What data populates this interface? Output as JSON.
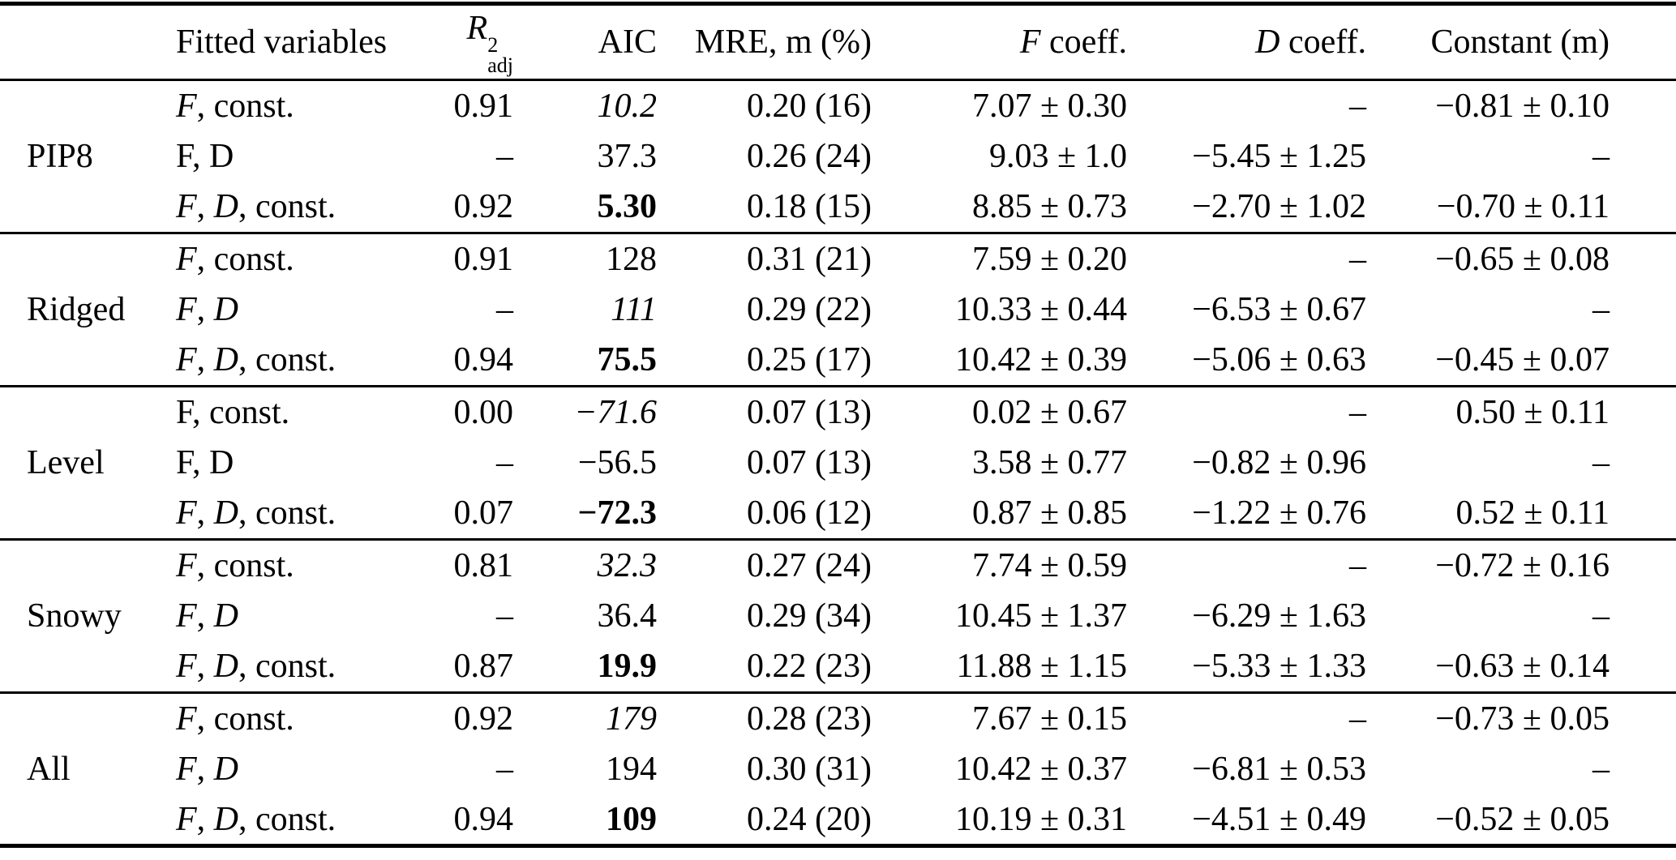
{
  "colors": {
    "text": "#000000",
    "background": "#ffffff",
    "rule": "#000000"
  },
  "table": {
    "header": {
      "group": "",
      "fitted": "Fitted variables",
      "r2_base": "R",
      "r2_sup": "2",
      "r2_sub": "adj",
      "aic": "AIC",
      "mre": "MRE, m (%)",
      "f_var": "F",
      "f_rest": " coeff.",
      "d_var": "D",
      "d_rest": " coeff.",
      "constant": "Constant (m)"
    },
    "groups": [
      {
        "name": "PIP8",
        "rows": [
          {
            "fitted": {
              "text": "F, const.",
              "italic_vars": true
            },
            "r2adj": "0.91",
            "aic": {
              "text": "10.2",
              "style": "italic"
            },
            "mre": "0.20 (16)",
            "f_coeff": "7.07 ± 0.30",
            "d_coeff": "–",
            "constant": "−0.81 ± 0.10"
          },
          {
            "fitted": {
              "text": "F, D",
              "italic_vars": false
            },
            "r2adj": "–",
            "aic": {
              "text": "37.3",
              "style": "normal"
            },
            "mre": "0.26 (24)",
            "f_coeff": "9.03 ± 1.0",
            "d_coeff": "−5.45 ± 1.25",
            "constant": "–"
          },
          {
            "fitted": {
              "text": "F, D, const.",
              "italic_vars": true
            },
            "r2adj": "0.92",
            "aic": {
              "text": "5.30",
              "style": "bold"
            },
            "mre": "0.18 (15)",
            "f_coeff": "8.85 ± 0.73",
            "d_coeff": "−2.70 ± 1.02",
            "constant": "−0.70 ± 0.11"
          }
        ]
      },
      {
        "name": "Ridged",
        "rows": [
          {
            "fitted": {
              "text": "F, const.",
              "italic_vars": true
            },
            "r2adj": "0.91",
            "aic": {
              "text": "128",
              "style": "normal"
            },
            "mre": "0.31 (21)",
            "f_coeff": "7.59 ± 0.20",
            "d_coeff": "–",
            "constant": "−0.65 ± 0.08"
          },
          {
            "fitted": {
              "text": "F, D",
              "italic_vars": true
            },
            "r2adj": "–",
            "aic": {
              "text": "111",
              "style": "italic"
            },
            "mre": "0.29 (22)",
            "f_coeff": "10.33 ± 0.44",
            "d_coeff": "−6.53 ± 0.67",
            "constant": "–"
          },
          {
            "fitted": {
              "text": "F, D, const.",
              "italic_vars": true
            },
            "r2adj": "0.94",
            "aic": {
              "text": "75.5",
              "style": "bold"
            },
            "mre": "0.25 (17)",
            "f_coeff": "10.42 ± 0.39",
            "d_coeff": "−5.06 ± 0.63",
            "constant": "−0.45 ± 0.07"
          }
        ]
      },
      {
        "name": "Level",
        "rows": [
          {
            "fitted": {
              "text": "F, const.",
              "italic_vars": false
            },
            "r2adj": "0.00",
            "aic": {
              "text": "−71.6",
              "style": "italic"
            },
            "mre": "0.07 (13)",
            "f_coeff": "0.02 ± 0.67",
            "d_coeff": "–",
            "constant": "0.50 ± 0.11"
          },
          {
            "fitted": {
              "text": "F, D",
              "italic_vars": false
            },
            "r2adj": "–",
            "aic": {
              "text": "−56.5",
              "style": "normal"
            },
            "mre": "0.07 (13)",
            "f_coeff": "3.58 ± 0.77",
            "d_coeff": "−0.82 ± 0.96",
            "constant": "–"
          },
          {
            "fitted": {
              "text": "F, D, const.",
              "italic_vars": true
            },
            "r2adj": "0.07",
            "aic": {
              "text": "−72.3",
              "style": "bold"
            },
            "mre": "0.06 (12)",
            "f_coeff": "0.87 ± 0.85",
            "d_coeff": "−1.22 ± 0.76",
            "constant": "0.52 ± 0.11"
          }
        ]
      },
      {
        "name": "Snowy",
        "rows": [
          {
            "fitted": {
              "text": "F, const.",
              "italic_vars": true
            },
            "r2adj": "0.81",
            "aic": {
              "text": "32.3",
              "style": "italic"
            },
            "mre": "0.27 (24)",
            "f_coeff": "7.74 ± 0.59",
            "d_coeff": "–",
            "constant": "−0.72 ± 0.16"
          },
          {
            "fitted": {
              "text": "F, D",
              "italic_vars": true
            },
            "r2adj": "–",
            "aic": {
              "text": "36.4",
              "style": "normal"
            },
            "mre": "0.29 (34)",
            "f_coeff": "10.45 ± 1.37",
            "d_coeff": "−6.29 ± 1.63",
            "constant": "–"
          },
          {
            "fitted": {
              "text": "F, D, const.",
              "italic_vars": true
            },
            "r2adj": "0.87",
            "aic": {
              "text": "19.9",
              "style": "bold"
            },
            "mre": "0.22 (23)",
            "f_coeff": "11.88 ± 1.15",
            "d_coeff": "−5.33 ± 1.33",
            "constant": "−0.63 ± 0.14"
          }
        ]
      },
      {
        "name": "All",
        "rows": [
          {
            "fitted": {
              "text": "F, const.",
              "italic_vars": true
            },
            "r2adj": "0.92",
            "aic": {
              "text": "179",
              "style": "italic"
            },
            "mre": "0.28 (23)",
            "f_coeff": "7.67 ± 0.15",
            "d_coeff": "–",
            "constant": "−0.73 ± 0.05"
          },
          {
            "fitted": {
              "text": "F, D",
              "italic_vars": true
            },
            "r2adj": "–",
            "aic": {
              "text": "194",
              "style": "normal"
            },
            "mre": "0.30 (31)",
            "f_coeff": "10.42 ± 0.37",
            "d_coeff": "−6.81 ± 0.53",
            "constant": "–"
          },
          {
            "fitted": {
              "text": "F, D, const.",
              "italic_vars": true
            },
            "r2adj": "0.94",
            "aic": {
              "text": "109",
              "style": "bold"
            },
            "mre": "0.24 (20)",
            "f_coeff": "10.19 ± 0.31",
            "d_coeff": "−4.51 ± 0.49",
            "constant": "−0.52 ± 0.05"
          }
        ]
      }
    ]
  }
}
